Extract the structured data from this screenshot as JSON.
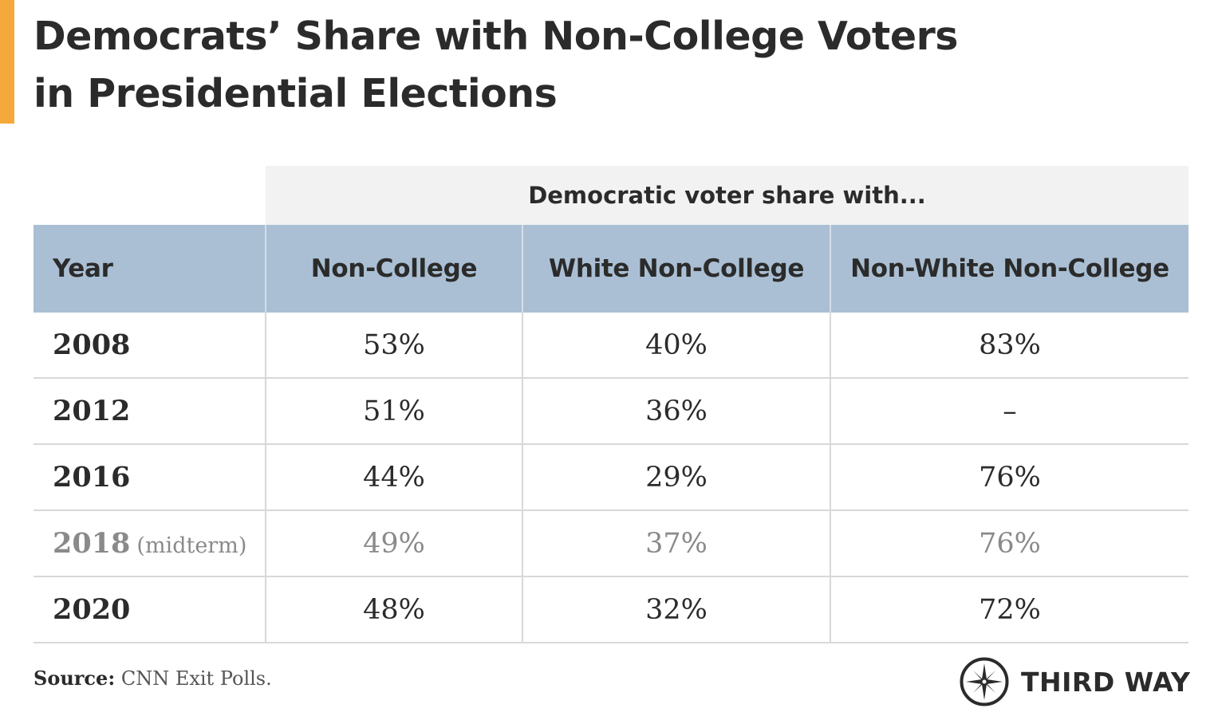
{
  "title": {
    "line1": "Democrats’ Share with Non-College Voters",
    "line2": "in Presidential Elections"
  },
  "table": {
    "super_header": "Democratic voter share with...",
    "columns": [
      "Year",
      "Non-College",
      "White Non-College",
      "Non-White Non-College"
    ],
    "rows": [
      {
        "year": "2008",
        "note": "",
        "non_college": "53%",
        "white_non_college": "40%",
        "non_white_non_college": "83%",
        "muted": false
      },
      {
        "year": "2012",
        "note": "",
        "non_college": "51%",
        "white_non_college": "36%",
        "non_white_non_college": "–",
        "muted": false
      },
      {
        "year": "2016",
        "note": "",
        "non_college": "44%",
        "white_non_college": "29%",
        "non_white_non_college": "76%",
        "muted": false
      },
      {
        "year": "2018",
        "note": "(midterm)",
        "non_college": "49%",
        "white_non_college": "37%",
        "non_white_non_college": "76%",
        "muted": true
      },
      {
        "year": "2020",
        "note": "",
        "non_college": "48%",
        "white_non_college": "32%",
        "non_white_non_college": "72%",
        "muted": false
      }
    ]
  },
  "source": {
    "label": "Source:",
    "text": "CNN Exit Polls."
  },
  "logo": {
    "icon": "compass-icon",
    "text": "THIRD WAY"
  },
  "colors": {
    "accent": "#f6a93b",
    "header_bg": "#aabfd3",
    "super_header_bg": "#f1f2f1",
    "muted_text": "#8a8a8a",
    "text": "#2b2b2b"
  },
  "chart_data": {
    "type": "table",
    "title": "Democrats’ Share with Non-College Voters in Presidential Elections",
    "column_group": "Democratic voter share with...",
    "columns": [
      "Year",
      "Non-College",
      "White Non-College",
      "Non-White Non-College"
    ],
    "categories": [
      "2008",
      "2012",
      "2016",
      "2018 (midterm)",
      "2020"
    ],
    "series": [
      {
        "name": "Non-College",
        "values": [
          53,
          51,
          44,
          49,
          48
        ]
      },
      {
        "name": "White Non-College",
        "values": [
          40,
          36,
          29,
          37,
          32
        ]
      },
      {
        "name": "Non-White Non-College",
        "values": [
          83,
          null,
          76,
          76,
          72
        ]
      }
    ],
    "unit": "%"
  }
}
